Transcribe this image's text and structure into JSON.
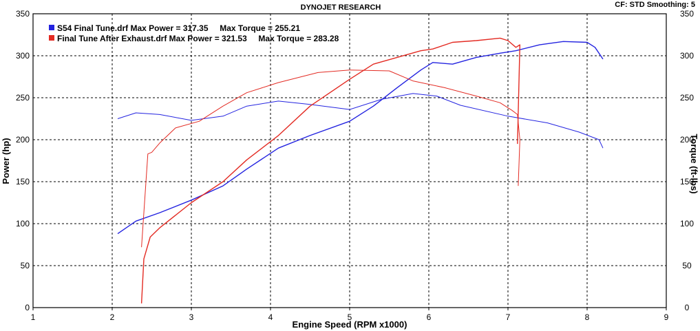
{
  "header": {
    "title": "DYNOJET RESEARCH",
    "settings": "CF: STD   Smoothing: 5"
  },
  "legend": {
    "run1_text": "S54 Final Tune.drf Max Power = 317.35     Max Torque = 255.21",
    "run2_text": "Final Tune After Exhaust.drf Max Power = 321.53     Max Torque = 283.28"
  },
  "colors": {
    "run1": "#2323e0",
    "run2": "#e32a22",
    "grid": "#000000",
    "background": "#ffffff"
  },
  "chart_data": {
    "type": "line",
    "title": "DYNOJET RESEARCH",
    "xlabel": "Engine Speed (RPM x1000)",
    "ylabel": "Power (hp)",
    "y2label": "Torque (ft-lbs)",
    "xlim": [
      1,
      9
    ],
    "ylim": [
      0,
      350
    ],
    "y2lim": [
      0,
      350
    ],
    "x_ticks": [
      "1",
      "2",
      "3",
      "4",
      "5",
      "6",
      "7",
      "8",
      "9"
    ],
    "y_ticks": [
      "0",
      "50",
      "100",
      "150",
      "200",
      "250",
      "300",
      "350"
    ],
    "y2_ticks": [
      "0",
      "50",
      "100",
      "150",
      "200",
      "250",
      "300",
      "350"
    ],
    "grid": true,
    "legend_position": "top-left",
    "series": [
      {
        "name": "S54 Final Tune.drf Power",
        "axis": "left",
        "color": "#2323e0",
        "x": [
          2.07,
          2.3,
          2.6,
          3.0,
          3.4,
          3.7,
          4.1,
          4.5,
          5.0,
          5.3,
          5.6,
          5.9,
          6.05,
          6.3,
          6.6,
          6.9,
          7.1,
          7.4,
          7.7,
          8.0,
          8.1,
          8.2
        ],
        "y": [
          88,
          103,
          113,
          128,
          145,
          165,
          190,
          205,
          222,
          240,
          262,
          283,
          292,
          290,
          298,
          303,
          306,
          313,
          317,
          316,
          310,
          296
        ]
      },
      {
        "name": "S54 Final Tune.drf Torque",
        "axis": "right",
        "color": "#2323e0",
        "x": [
          2.07,
          2.3,
          2.6,
          3.0,
          3.4,
          3.7,
          4.1,
          4.5,
          5.0,
          5.4,
          5.8,
          6.1,
          6.4,
          7.0,
          7.5,
          7.9,
          8.15,
          8.2
        ],
        "y": [
          225,
          232,
          230,
          223,
          228,
          240,
          246,
          242,
          236,
          248,
          255,
          252,
          241,
          228,
          220,
          209,
          200,
          190
        ]
      },
      {
        "name": "Final Tune After Exhaust.drf Power",
        "axis": "left",
        "color": "#e32a22",
        "x": [
          2.37,
          2.4,
          2.48,
          2.6,
          3.0,
          3.4,
          3.7,
          4.1,
          4.5,
          5.0,
          5.3,
          5.6,
          5.9,
          6.05,
          6.3,
          6.6,
          6.9,
          7.0,
          7.1,
          7.15,
          7.12
        ],
        "y": [
          5,
          58,
          84,
          95,
          125,
          150,
          176,
          205,
          240,
          272,
          290,
          298,
          306,
          308,
          316,
          318,
          321,
          318,
          310,
          313,
          195
        ]
      },
      {
        "name": "Final Tune After Exhaust.drf Torque",
        "axis": "right",
        "color": "#e32a22",
        "x": [
          2.37,
          2.45,
          2.5,
          2.6,
          2.8,
          3.1,
          3.4,
          3.7,
          4.1,
          4.6,
          5.0,
          5.5,
          5.8,
          6.2,
          6.6,
          6.9,
          7.05,
          7.12,
          7.15,
          7.13
        ],
        "y": [
          72,
          183,
          185,
          196,
          214,
          222,
          240,
          256,
          268,
          280,
          283,
          282,
          270,
          262,
          252,
          244,
          235,
          230,
          200,
          145
        ]
      }
    ]
  }
}
